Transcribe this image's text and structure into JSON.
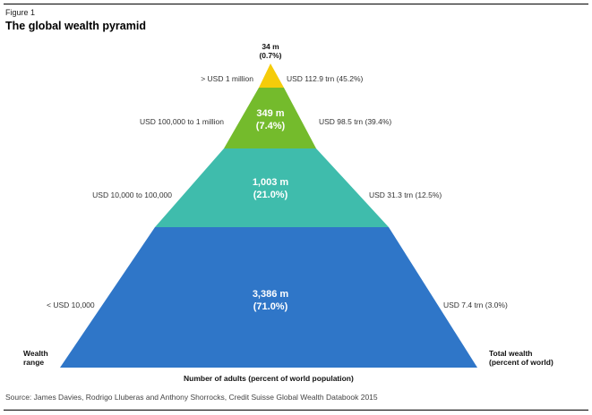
{
  "figure_label": "Figure 1",
  "title": "The global wealth pyramid",
  "tiers": [
    {
      "adults": "34 m",
      "share": "(0.7%)",
      "wealth_range": "> USD 1 million",
      "total_wealth": "USD 112.9 trn (45.2%)",
      "color": "#f5cc0a"
    },
    {
      "adults": "349 m",
      "share": "(7.4%)",
      "wealth_range": "USD 100,000 to 1 million",
      "total_wealth": "USD 98.5 trn (39.4%)",
      "color": "#74bb2c"
    },
    {
      "adults": "1,003 m",
      "share": "(21.0%)",
      "wealth_range": "USD 10,000 to 100,000",
      "total_wealth": "USD 31.3 trn (12.5%)",
      "color": "#3fbcac"
    },
    {
      "adults": "3,386 m",
      "share": "(71.0%)",
      "wealth_range": "< USD 10,000",
      "total_wealth": "USD 7.4 trn (3.0%)",
      "color": "#2f76c8"
    }
  ],
  "left_axis_label_line1": "Wealth",
  "left_axis_label_line2": "range",
  "right_axis_label_line1": "Total wealth",
  "right_axis_label_line2": "(percent of world)",
  "bottom_caption": "Number of adults (percent of world population)",
  "source": "Source: James Davies, Rodrigo Lluberas and Anthony Shorrocks, Credit Suisse Global Wealth Databook 2015"
}
